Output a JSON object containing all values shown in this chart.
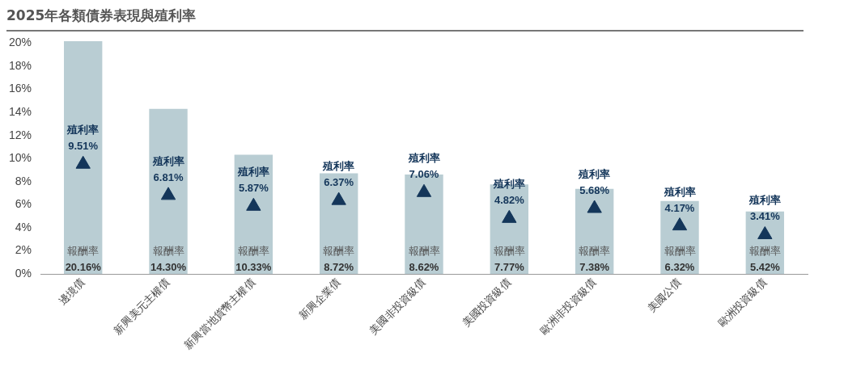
{
  "chart_data": {
    "type": "bar",
    "title": "2025年各類債券表現與殖利率",
    "categories": [
      "邊境債",
      "新興美元主權債",
      "新興當地貨幣主權債",
      "新興企業債",
      "美國非投資級債",
      "美國投資級債",
      "歐洲非投資級債",
      "美國公債",
      "歐洲投資級債"
    ],
    "series": [
      {
        "name": "報酬率",
        "color": "#b9cdd3",
        "values": [
          20.16,
          14.3,
          10.33,
          8.72,
          8.62,
          7.77,
          7.38,
          6.32,
          5.42
        ],
        "value_labels": [
          "20.16%",
          "14.30%",
          "10.33%",
          "8.72%",
          "8.62%",
          "7.77%",
          "7.38%",
          "6.32%",
          "5.42%"
        ]
      },
      {
        "name": "殖利率",
        "type": "scatter",
        "color": "#14365a",
        "marker": "triangle",
        "x": [
          "邊境債",
          "新興美元主權債",
          "新興當地貨幣主權債",
          "新興企業債",
          "美國非投資級債",
          "美國投資級債",
          "歐洲非投資級債",
          "美國公債",
          "歐洲投資級債"
        ],
        "values": [
          9.51,
          6.81,
          5.87,
          6.37,
          7.06,
          4.82,
          5.68,
          4.17,
          3.41
        ],
        "value_labels": [
          "9.51%",
          "6.81%",
          "5.87%",
          "6.37%",
          "7.06%",
          "4.82%",
          "5.68%",
          "4.17%",
          "3.41%"
        ]
      }
    ],
    "ylim": [
      0,
      20.2
    ],
    "yticks": [
      {
        "value": 0,
        "label": "0%"
      },
      {
        "value": 2,
        "label": "2%"
      },
      {
        "value": 4,
        "label": "4%"
      },
      {
        "value": 6,
        "label": "6%"
      },
      {
        "value": 8,
        "label": "8%"
      },
      {
        "value": 10,
        "label": "10%"
      },
      {
        "value": 12,
        "label": "12%"
      },
      {
        "value": 14,
        "label": "14%"
      },
      {
        "value": 16,
        "label": "16%"
      },
      {
        "value": 18,
        "label": "18%"
      },
      {
        "value": 20,
        "label": "20%"
      }
    ],
    "grid": false,
    "legend": false
  }
}
